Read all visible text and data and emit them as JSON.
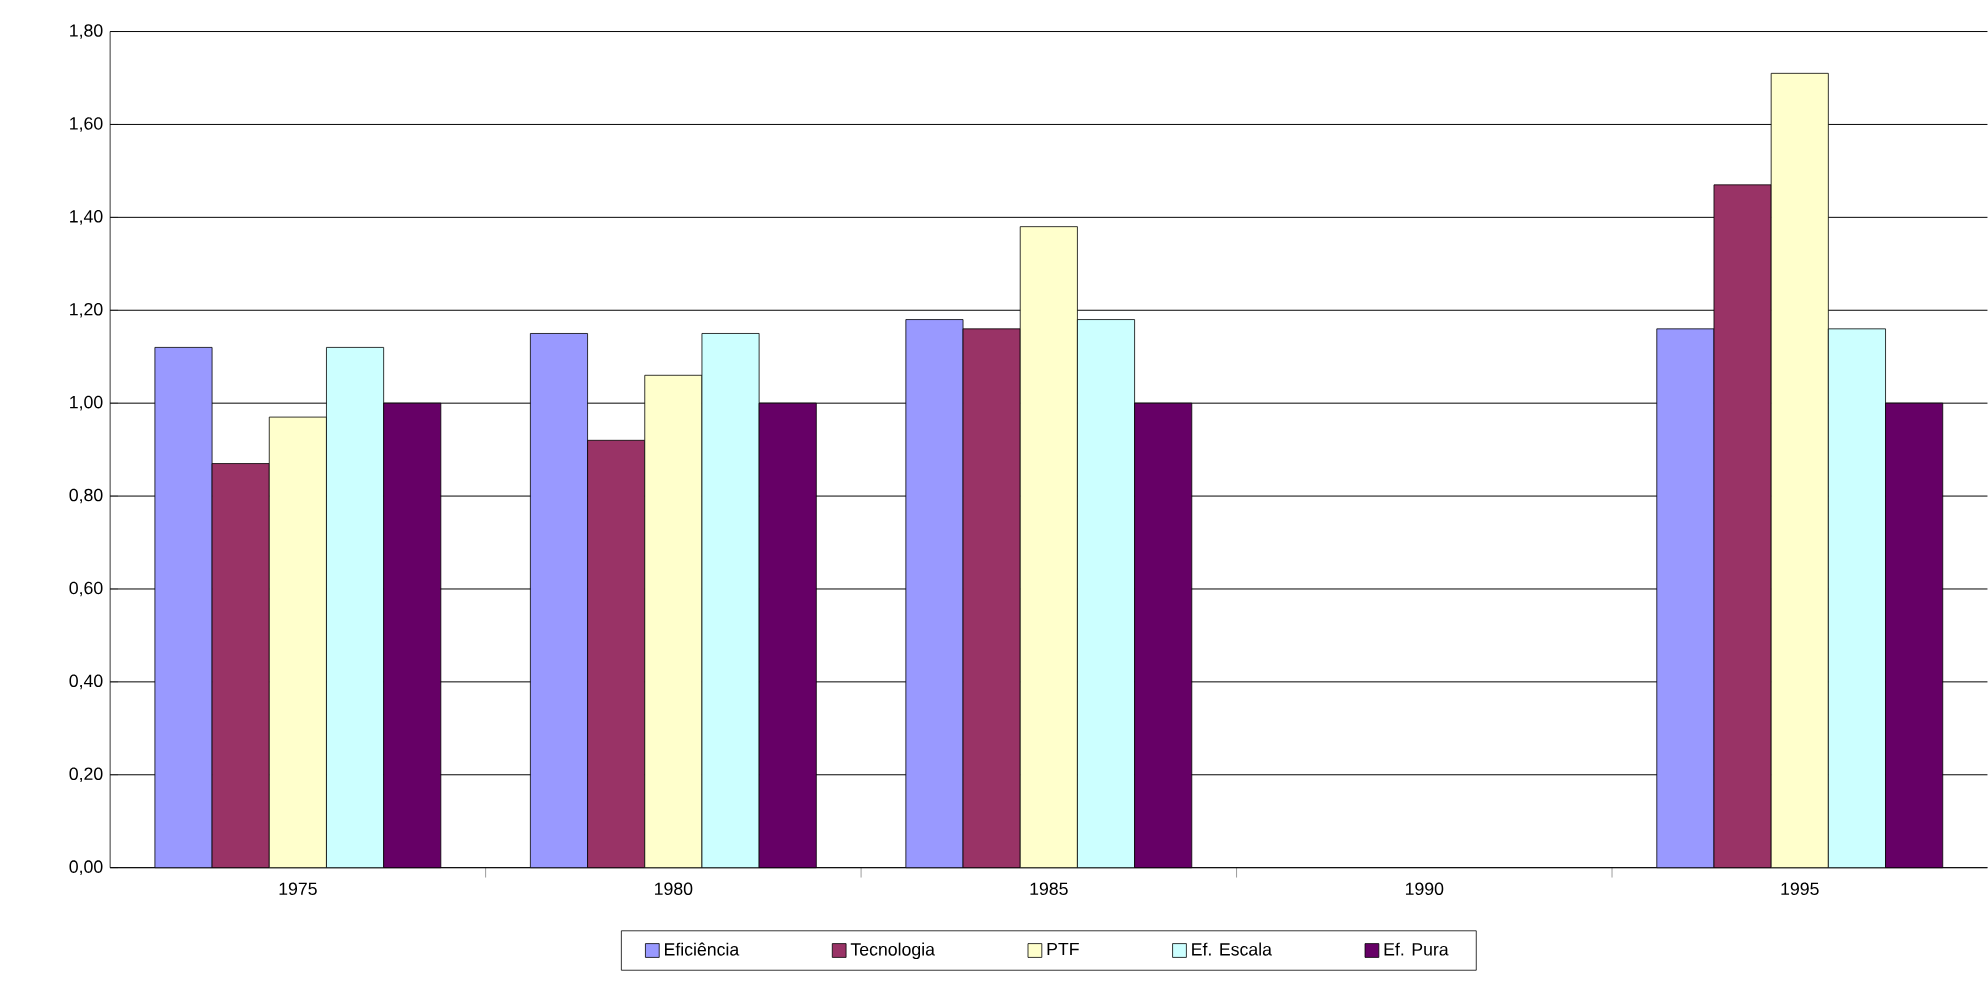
{
  "chart_data": {
    "type": "bar",
    "categories": [
      "1975",
      "1980",
      "1985",
      "1990",
      "1995"
    ],
    "series": [
      {
        "name": "Eficiência",
        "color": "#9999ff",
        "values": [
          1.12,
          1.15,
          1.18,
          null,
          1.16
        ]
      },
      {
        "name": "Tecnologia",
        "color": "#993366",
        "values": [
          0.87,
          0.92,
          1.16,
          null,
          1.47
        ]
      },
      {
        "name": "PTF",
        "color": "#ffffcc",
        "values": [
          0.97,
          1.06,
          1.38,
          null,
          1.71
        ]
      },
      {
        "name": "Ef. Escala",
        "color": "#ccffff",
        "values": [
          1.12,
          1.15,
          1.18,
          null,
          1.16
        ]
      },
      {
        "name": "Ef. Pura",
        "color": "#660066",
        "values": [
          1.0,
          1.0,
          1.0,
          null,
          1.0
        ]
      }
    ],
    "ylim": [
      0,
      1.8
    ],
    "yticks": [
      {
        "value": 0,
        "label": "0,00"
      },
      {
        "value": 0.2,
        "label": "0,20"
      },
      {
        "value": 0.4,
        "label": "0,40"
      },
      {
        "value": 0.6,
        "label": "0,60"
      },
      {
        "value": 0.8,
        "label": "0,80"
      },
      {
        "value": 1.0,
        "label": "1,00"
      },
      {
        "value": 1.2,
        "label": "1,20"
      },
      {
        "value": 1.4,
        "label": "1,40"
      },
      {
        "value": 1.6,
        "label": "1,60"
      },
      {
        "value": 1.8,
        "label": "1,80"
      }
    ],
    "grid": "y",
    "legend": "bottom"
  }
}
